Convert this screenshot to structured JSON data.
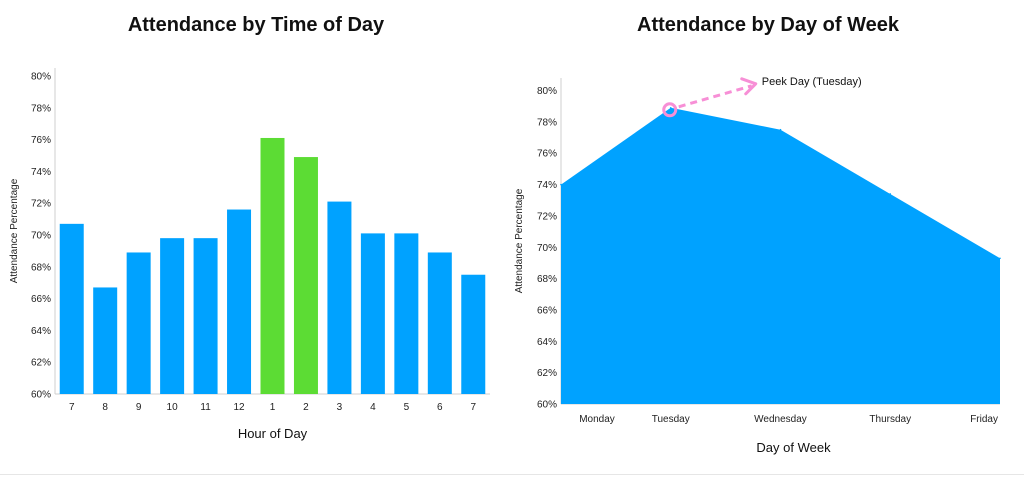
{
  "chart_data": [
    {
      "type": "bar",
      "title": "Attendance by Time of Day",
      "xlabel": "Hour of Day",
      "ylabel": "Attendance Percentage",
      "categories": [
        "7",
        "8",
        "9",
        "10",
        "11",
        "12",
        "1",
        "2",
        "3",
        "4",
        "5",
        "6",
        "7"
      ],
      "values": [
        70.7,
        66.7,
        68.9,
        69.8,
        69.8,
        71.6,
        76.1,
        74.9,
        72.1,
        70.1,
        70.1,
        68.9,
        67.5
      ],
      "highlight": [
        false,
        false,
        false,
        false,
        false,
        false,
        true,
        true,
        false,
        false,
        false,
        false,
        false
      ],
      "ylim": [
        60,
        80.5
      ],
      "yticks": [
        60,
        62,
        64,
        66,
        68,
        70,
        72,
        74,
        76,
        78,
        80
      ],
      "ytick_labels": [
        "60%",
        "62%",
        "64%",
        "66%",
        "68%",
        "70%",
        "72%",
        "74%",
        "76%",
        "78%",
        "80%"
      ],
      "grid": false,
      "colors": {
        "default": "#00a2ff",
        "highlight": "#5cdc34"
      }
    },
    {
      "type": "area",
      "title": "Attendance by Day of Week",
      "xlabel": "Day of Week",
      "ylabel": "Attendance Percentage",
      "categories": [
        "Monday",
        "Tuesday",
        "Wednesday",
        "Thursday",
        "Friday"
      ],
      "values": [
        74.0,
        78.9,
        77.5,
        73.4,
        69.3
      ],
      "ylim": [
        60,
        80.8
      ],
      "yticks": [
        60,
        62,
        64,
        66,
        68,
        70,
        72,
        74,
        76,
        78,
        80
      ],
      "ytick_labels": [
        "60%",
        "62%",
        "64%",
        "66%",
        "68%",
        "70%",
        "72%",
        "74%",
        "76%",
        "78%",
        "80%"
      ],
      "grid": false,
      "colors": {
        "fill": "#00a2ff",
        "annotation": "#f78fd6"
      },
      "annotation": {
        "text": "Peek Day (Tuesday)",
        "category": "Tuesday"
      }
    }
  ]
}
